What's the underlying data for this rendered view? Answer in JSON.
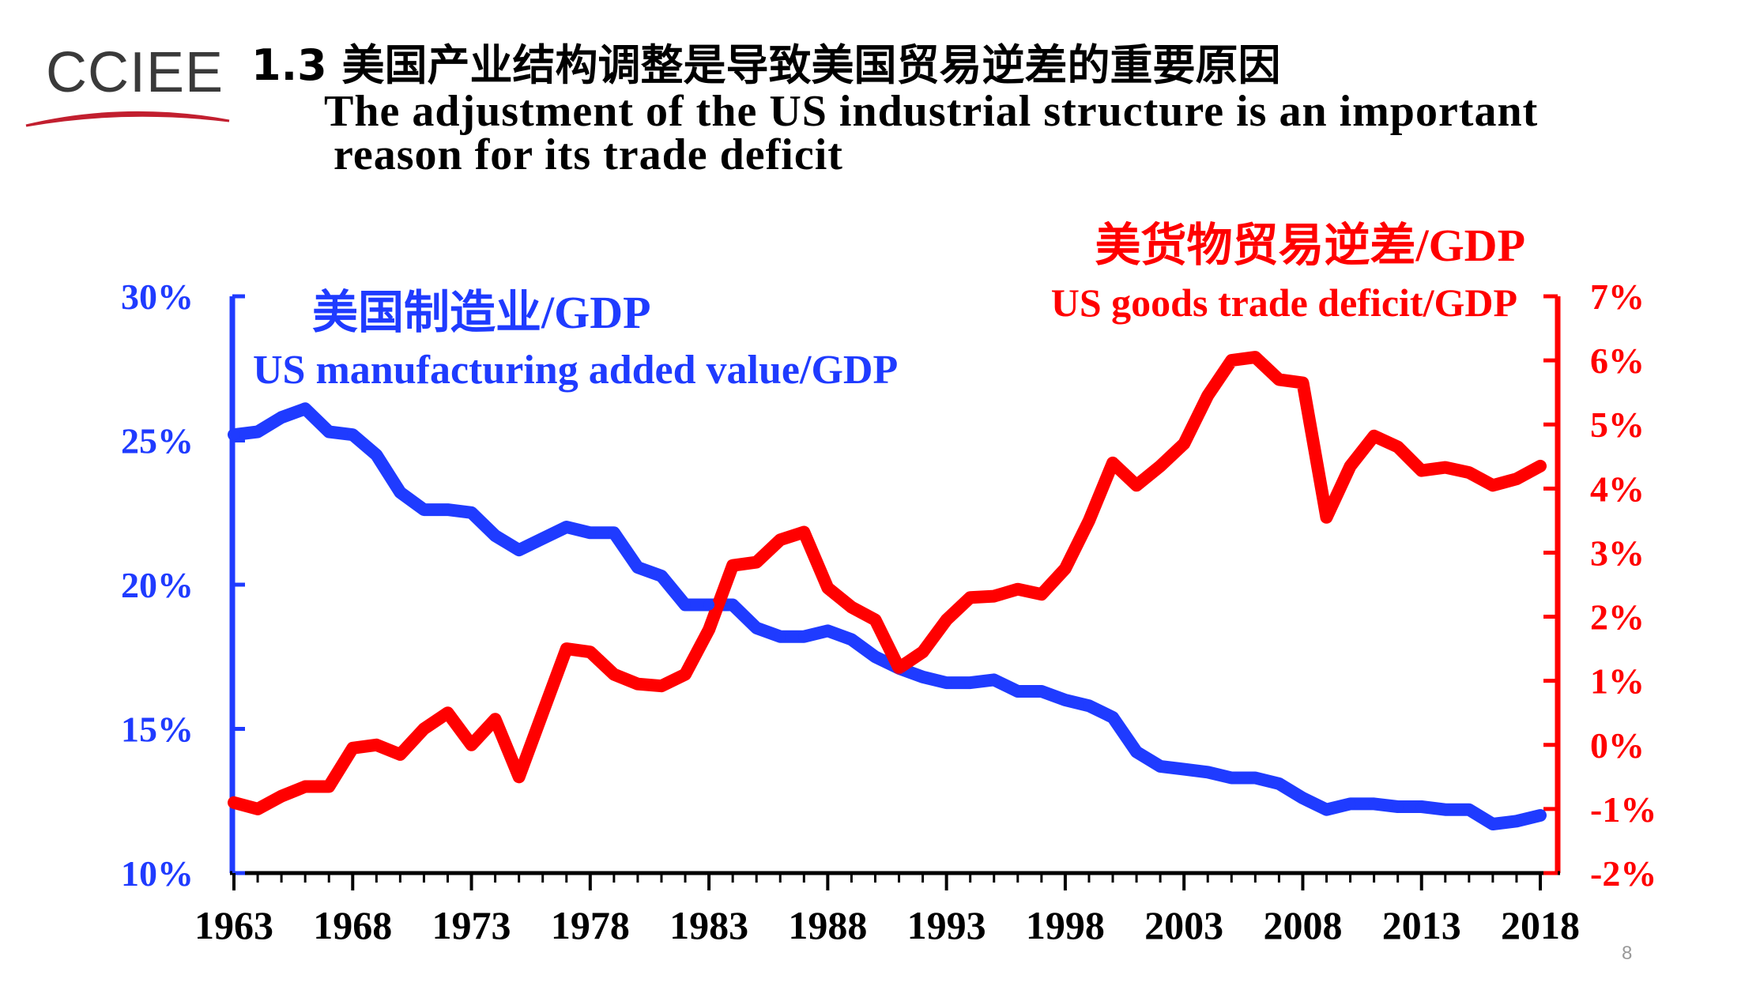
{
  "logo": {
    "text": "CCIEE"
  },
  "title": {
    "cn": "1.3 美国产业结构调整是导致美国贸易逆差的重要原因",
    "en_line1": "The adjustment of the US industrial structure is an important",
    "en_line2": "reason for its trade deficit"
  },
  "page_number": "8",
  "colors": {
    "blue": "#1f3bff",
    "red": "#ff0000"
  },
  "chart_data": {
    "type": "line",
    "x_tick_labels": [
      "1963",
      "1968",
      "1973",
      "1978",
      "1983",
      "1988",
      "1993",
      "1998",
      "2003",
      "2008",
      "2013",
      "2018"
    ],
    "x_range": [
      1963,
      2018
    ],
    "left_axis": {
      "ylim": [
        0.1,
        0.3
      ],
      "tick_values": [
        0.1,
        0.15,
        0.2,
        0.25,
        0.3
      ],
      "tick_labels": [
        "10%",
        "15%",
        "20%",
        "25%",
        "30%"
      ],
      "color": "#1f3bff"
    },
    "right_axis": {
      "ylim": [
        -0.02,
        0.07
      ],
      "tick_values": [
        -0.02,
        -0.01,
        0.0,
        0.01,
        0.02,
        0.03,
        0.04,
        0.05,
        0.06,
        0.07
      ],
      "tick_labels": [
        "-2%",
        "-1%",
        "0%",
        "1%",
        "2%",
        "3%",
        "4%",
        "5%",
        "6%",
        "7%"
      ],
      "color": "#ff0000"
    },
    "series": [
      {
        "name_cn": "美国制造业/GDP",
        "name_en": "US manufacturing added value/GDP",
        "axis": "left",
        "color": "#1f3bff",
        "x": [
          1963,
          1964,
          1965,
          1966,
          1967,
          1968,
          1969,
          1970,
          1971,
          1972,
          1973,
          1974,
          1975,
          1976,
          1977,
          1978,
          1979,
          1980,
          1981,
          1982,
          1983,
          1984,
          1985,
          1986,
          1987,
          1988,
          1989,
          1990,
          1991,
          1992,
          1993,
          1994,
          1995,
          1996,
          1997,
          1998,
          1999,
          2000,
          2001,
          2002,
          2003,
          2004,
          2005,
          2006,
          2007,
          2008,
          2009,
          2010,
          2011,
          2012,
          2013,
          2014,
          2015,
          2016,
          2017,
          2018
        ],
        "values": [
          0.252,
          0.253,
          0.258,
          0.261,
          0.253,
          0.252,
          0.245,
          0.232,
          0.226,
          0.226,
          0.225,
          0.217,
          0.212,
          0.216,
          0.22,
          0.218,
          0.218,
          0.206,
          0.203,
          0.193,
          0.193,
          0.193,
          0.185,
          0.182,
          0.182,
          0.184,
          0.181,
          0.175,
          0.171,
          0.168,
          0.166,
          0.166,
          0.167,
          0.163,
          0.163,
          0.16,
          0.158,
          0.154,
          0.142,
          0.137,
          0.136,
          0.135,
          0.133,
          0.133,
          0.131,
          0.126,
          0.122,
          0.124,
          0.124,
          0.123,
          0.123,
          0.122,
          0.122,
          0.117,
          0.118,
          0.12
        ]
      },
      {
        "name_cn": "美货物贸易逆差/GDP",
        "name_en": "US goods trade deficit/GDP",
        "axis": "right",
        "color": "#ff0000",
        "x": [
          1963,
          1964,
          1965,
          1966,
          1967,
          1968,
          1969,
          1970,
          1971,
          1972,
          1973,
          1974,
          1975,
          1976,
          1977,
          1978,
          1979,
          1980,
          1981,
          1982,
          1983,
          1984,
          1985,
          1986,
          1987,
          1988,
          1989,
          1990,
          1991,
          1992,
          1993,
          1994,
          1995,
          1996,
          1997,
          1998,
          1999,
          2000,
          2001,
          2002,
          2003,
          2004,
          2005,
          2006,
          2007,
          2008,
          2009,
          2010,
          2011,
          2012,
          2013,
          2014,
          2015,
          2016,
          2017,
          2018
        ],
        "values": [
          -0.009,
          -0.01,
          -0.008,
          -0.0065,
          -0.0065,
          -0.0005,
          0.0,
          -0.0015,
          0.0025,
          0.005,
          0.0,
          0.004,
          -0.005,
          0.005,
          0.015,
          0.0145,
          0.011,
          0.0095,
          0.0092,
          0.011,
          0.018,
          0.028,
          0.0285,
          0.032,
          0.0332,
          0.0245,
          0.0215,
          0.0195,
          0.012,
          0.0145,
          0.0195,
          0.023,
          0.0232,
          0.0243,
          0.0235,
          0.0275,
          0.035,
          0.044,
          0.0405,
          0.0435,
          0.047,
          0.0545,
          0.06,
          0.0605,
          0.057,
          0.0565,
          0.0355,
          0.0435,
          0.0482,
          0.0465,
          0.0428,
          0.0433,
          0.0425,
          0.0405,
          0.0415,
          0.0435
        ]
      }
    ]
  }
}
